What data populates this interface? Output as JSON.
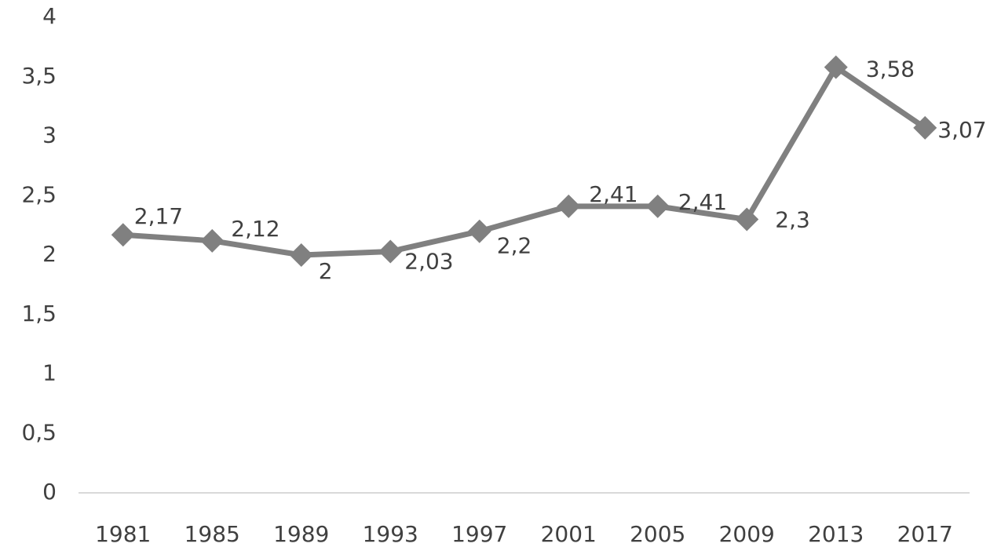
{
  "chart_data": {
    "type": "line",
    "categories": [
      "1981",
      "1985",
      "1989",
      "1993",
      "1997",
      "2001",
      "2005",
      "2009",
      "2013",
      "2017"
    ],
    "values": [
      2.17,
      2.12,
      2,
      2.03,
      2.2,
      2.41,
      2.41,
      2.3,
      3.58,
      3.07
    ],
    "value_labels": [
      "2,17",
      "2,12",
      "2",
      "2,03",
      "2,2",
      "2,41",
      "2,41",
      "2,3",
      "3,58",
      "3,07"
    ],
    "color": "#808080",
    "ylim": [
      0,
      4
    ],
    "yticks": [
      0,
      {
        "value": 0.5,
        "label": "0,5"
      },
      1,
      {
        "value": 1.5,
        "label": "1,5"
      },
      2,
      {
        "value": 2.5,
        "label": "2,5"
      },
      3,
      {
        "value": 3.5,
        "label": "3,5"
      },
      4
    ],
    "grid": false
  }
}
